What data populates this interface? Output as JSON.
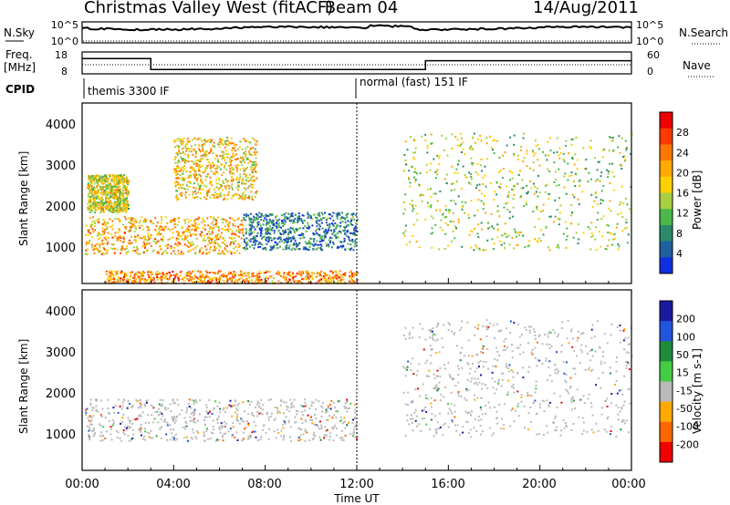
{
  "header": {
    "title": "Christmas Valley West (fitACF)",
    "beam": "Beam 04",
    "date": "14/Aug/2011"
  },
  "top_panels": {
    "nsky_label": "N.Sky",
    "nsky_ticks": [
      "10^5",
      "10^0"
    ],
    "nsearch_label": "N.Search",
    "nsearch_ticks": [
      "10^5",
      "10^0"
    ],
    "freq_label": "Freq.",
    "freq_unit": "[MHz]",
    "freq_ticks": [
      "18",
      "8"
    ],
    "nave_label": "Nave",
    "nave_ticks": [
      "60",
      "0"
    ],
    "cpid_label": "CPID",
    "cpid_modes": [
      "themis 3300 IF",
      "normal (fast) 151 IF"
    ]
  },
  "x_axis": {
    "label": "Time UT",
    "ticks": [
      "00:00",
      "04:00",
      "08:00",
      "12:00",
      "16:00",
      "20:00",
      "00:00"
    ]
  },
  "power_panel": {
    "ylabel": "Slant Range [km]",
    "yticks": [
      "4000",
      "3000",
      "2000",
      "1000"
    ],
    "colorbar_label": "Power [dB]",
    "colorbar_ticks": [
      "28",
      "24",
      "20",
      "16",
      "12",
      "8",
      "4"
    ],
    "colors": [
      "#ee0000",
      "#ff3a00",
      "#ff7700",
      "#ffaa00",
      "#ffd000",
      "#a8d040",
      "#4ab84a",
      "#2c8a6a",
      "#2060a0",
      "#1030e0"
    ]
  },
  "velocity_panel": {
    "ylabel": "Slant Range [km]",
    "yticks": [
      "4000",
      "3000",
      "2000",
      "1000"
    ],
    "colorbar_label": "Velocity [m s-1]",
    "colorbar_ticks": [
      "200",
      "100",
      "50",
      "15",
      "-15",
      "-50",
      "-100",
      "-200"
    ],
    "colors": [
      "#1a1aa0",
      "#2255dd",
      "#1e8a3a",
      "#44cc44",
      "#bbbbbb",
      "#ffaa00",
      "#ff6600",
      "#ee0000"
    ]
  },
  "chart_data": {
    "type": "heatmap",
    "title": "Christmas Valley West (fitACF)",
    "subtitle": "Beam 04 14/Aug/2011",
    "xlabel": "Time UT",
    "x_range_hours": [
      0,
      24
    ],
    "ylabel": "Slant Range [km]",
    "ylim": [
      180,
      4500
    ],
    "cpid_segments": [
      {
        "start_hr": 0,
        "end_hr": 12,
        "name": "themis 3300 IF"
      },
      {
        "start_hr": 12,
        "end_hr": 24,
        "name": "normal (fast) 151 IF"
      }
    ],
    "freq_mhz_segments": [
      {
        "start_hr": 0,
        "end_hr": 3,
        "value": 15
      },
      {
        "start_hr": 3,
        "end_hr": 15,
        "value": 10
      },
      {
        "start_hr": 15,
        "end_hr": 24,
        "value": 14
      }
    ],
    "power_db_range": [
      0,
      32
    ],
    "velocity_range": [
      -200,
      200
    ],
    "echo_regions": [
      {
        "name": "power-band-1",
        "t0": 0.1,
        "t1": 7.0,
        "r0": 900,
        "r1": 1800,
        "power_db": 22
      },
      {
        "name": "power-arc-early",
        "t0": 0.2,
        "t1": 2.0,
        "r0": 1900,
        "r1": 2800,
        "power_db": 18
      },
      {
        "name": "power-arc-mid",
        "t0": 4.0,
        "t1": 7.6,
        "r0": 2200,
        "r1": 3700,
        "power_db": 20
      },
      {
        "name": "power-band-2",
        "t0": 7.0,
        "t1": 12.0,
        "r0": 1000,
        "r1": 1900,
        "power_db": 8
      },
      {
        "name": "power-near-range",
        "t0": 1.0,
        "t1": 12.0,
        "r0": 200,
        "r1": 500,
        "power_db": 24
      },
      {
        "name": "power-patch-late",
        "t0": 14.0,
        "t1": 24.0,
        "r0": 1000,
        "r1": 3800,
        "power_db": 16
      },
      {
        "name": "velocity-band",
        "t0": 0.1,
        "t1": 12.0,
        "r0": 900,
        "r1": 1900,
        "velocity": -20
      },
      {
        "name": "velocity-patch-late",
        "t0": 14.0,
        "t1": 24.0,
        "r0": 1000,
        "r1": 3800,
        "velocity": 0
      }
    ]
  }
}
